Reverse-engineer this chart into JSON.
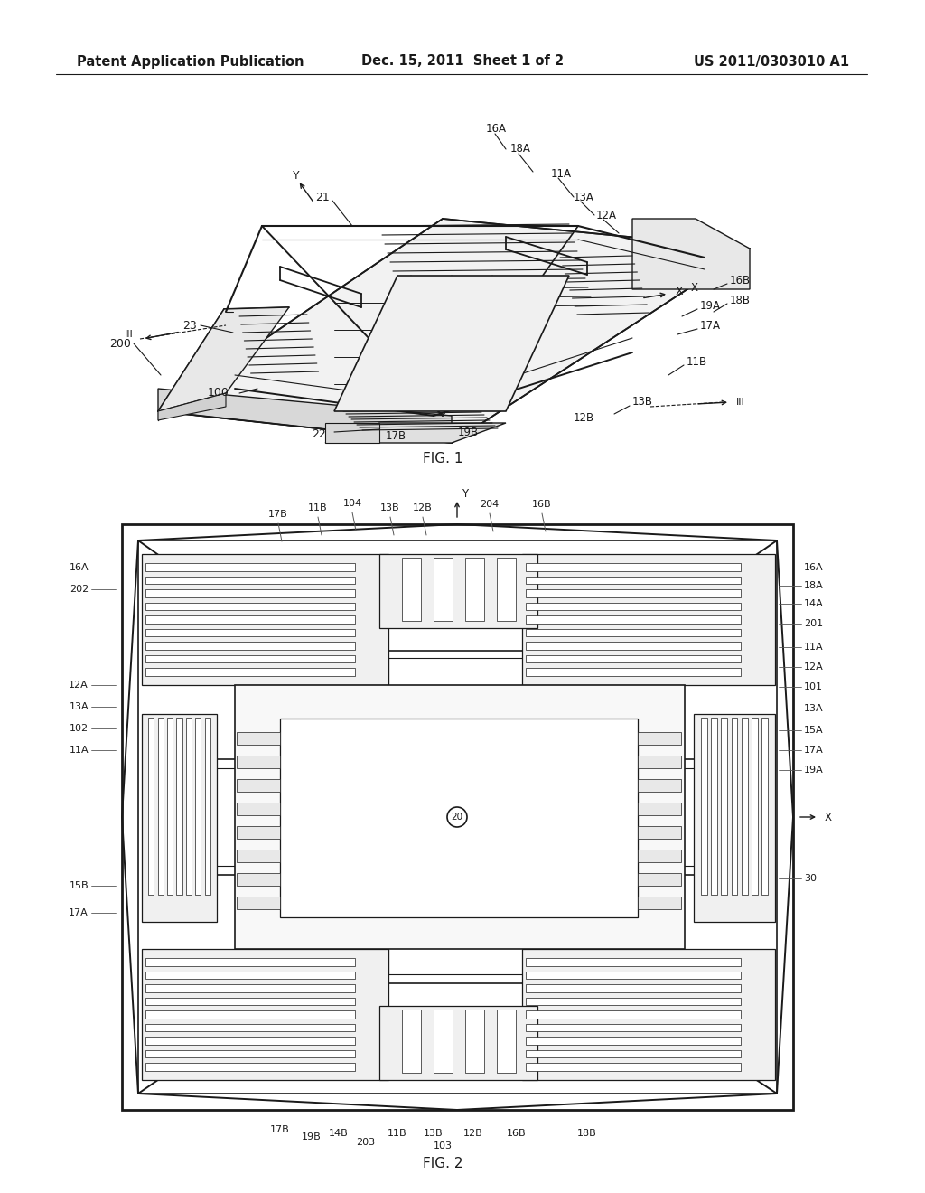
{
  "background_color": "#ffffff",
  "page_width": 10.24,
  "page_height": 13.2,
  "header_left": "Patent Application Publication",
  "header_center": "Dec. 15, 2011  Sheet 1 of 2",
  "header_right": "US 2011/0303010 A1",
  "fig1_caption": "FIG. 1",
  "fig2_caption": "FIG. 2",
  "lc": "#1a1a1a",
  "lw": 1.0
}
